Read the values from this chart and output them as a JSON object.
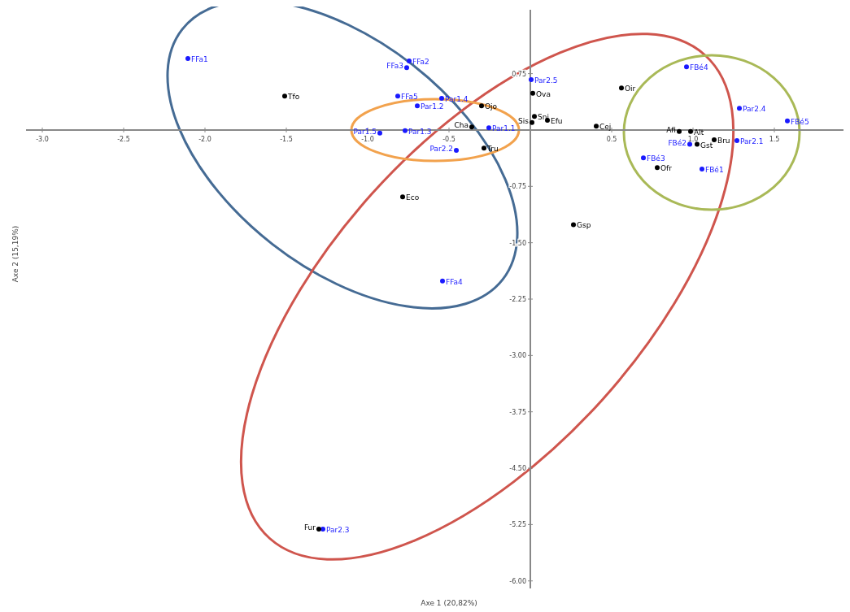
{
  "chart_data": {
    "type": "scatter",
    "xlabel": "Axe 1 (20,82%)",
    "ylabel": "Axe 2 (15,19%)",
    "xlim": [
      -3.1,
      1.95
    ],
    "ylim": [
      -6.1,
      1.6
    ],
    "xticks": [
      {
        "value": -3,
        "label": "-3.0"
      },
      -2.5,
      {
        "value": -2,
        "label": "-2.0"
      },
      -1.5,
      {
        "value": -1,
        "label": "-1.0"
      },
      -0.5,
      0.5,
      {
        "value": 1,
        "label": "1.0"
      },
      1.5
    ],
    "yticks": [
      0.75,
      -0.75,
      {
        "value": -1.5,
        "label": "-1.50"
      },
      -2.25,
      {
        "value": -3,
        "label": "-3.00"
      },
      -3.75,
      {
        "value": -4.5,
        "label": "-4.50"
      },
      -5.25,
      {
        "value": -6,
        "label": "-6.00"
      }
    ],
    "grid": false,
    "marker": "circle",
    "series": [
      {
        "color": "#1a1aff",
        "x": [
          -2.105,
          -0.745,
          -0.76,
          -0.815,
          -0.545,
          -0.695,
          -0.925,
          -0.77,
          -0.255,
          -0.455,
          0.005,
          -0.54,
          -1.275,
          0.96,
          1.285,
          1.58,
          1.27,
          0.98,
          0.695,
          1.055
        ],
        "values": [
          0.95,
          0.92,
          0.83,
          0.45,
          0.42,
          0.32,
          -0.04,
          -0.01,
          0.03,
          -0.27,
          0.67,
          -2.01,
          -5.31,
          0.84,
          0.29,
          0.12,
          -0.14,
          -0.19,
          -0.37,
          -0.52
        ],
        "value_labels": [
          "FFa1",
          "FFa2",
          "FFa3",
          "FFa5",
          "Par1.4",
          "Par1.2",
          "Par1.5",
          "Par1.3",
          "Par1.1",
          "Par2.2",
          "Par2.5",
          "FFa4",
          "Par2.3",
          "FBé4",
          "Par2.4",
          "FBé5",
          "Par2.1",
          "FBé2",
          "FBé3",
          "FBé1"
        ]
      },
      {
        "color": "#000000",
        "x": [
          -1.51,
          -0.3,
          0.015,
          0.025,
          0.01,
          0.105,
          0.405,
          -0.36,
          -0.285,
          -0.785,
          0.265,
          0.56,
          0.915,
          0.985,
          1.025,
          1.13,
          0.78,
          -1.3
        ],
        "values": [
          0.45,
          0.32,
          0.49,
          0.18,
          0.1,
          0.13,
          0.05,
          0.04,
          -0.24,
          -0.89,
          -1.26,
          0.56,
          -0.02,
          -0.02,
          -0.19,
          -0.13,
          -0.5,
          -5.31
        ],
        "value_labels": [
          "Tfo",
          "Ojo",
          "Ova",
          "Sni",
          "Sis",
          "Efu",
          "Cej",
          "Cha",
          "Tru",
          "Eco",
          "Gsp",
          "Oir",
          "Afi",
          "Alt",
          "Gst",
          "Bru",
          "Ofr",
          "Fur"
        ]
      }
    ]
  }
}
